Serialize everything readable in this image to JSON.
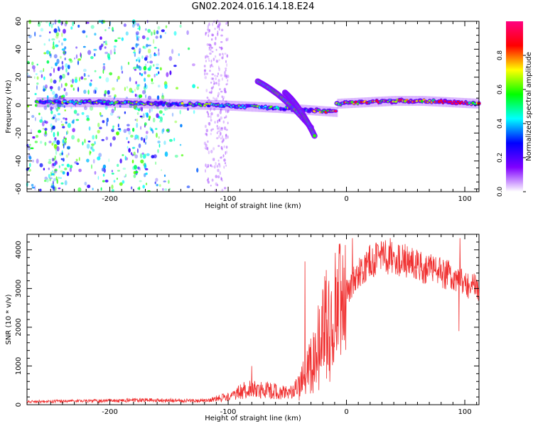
{
  "title": "GN02.2024.016.14.18.E24",
  "chart_data": [
    {
      "type": "heatmap",
      "xlabel": "Height of straight line (km)",
      "ylabel": "Frequency (Hz)",
      "xlim": [
        -270,
        112
      ],
      "ylim": [
        -62,
        60
      ],
      "xticks": [
        -200,
        -100,
        0,
        100
      ],
      "yticks": [
        -60,
        -40,
        -20,
        0,
        20,
        40,
        60
      ],
      "colorbar": {
        "label": "Normalized spectral amplitude",
        "range": [
          0,
          1
        ],
        "ticks": [
          0.0,
          0.2,
          0.4,
          0.6,
          0.8
        ],
        "colors": [
          "#ffffff",
          "#8000ff",
          "#0000ff",
          "#00ffff",
          "#00ff00",
          "#ffff00",
          "#ff0000",
          "#ff0080"
        ]
      },
      "bands": [
        {
          "x": [
            -262,
            -8
          ],
          "f": [
            2,
            2,
            1,
            0,
            -2,
            -5
          ],
          "amplitude": 0.45
        },
        {
          "x": [
            -8,
            112
          ],
          "f": [
            1,
            2,
            3,
            3,
            2,
            1
          ],
          "amplitude": 0.7
        }
      ],
      "arcs": [
        {
          "x": [
            -75,
            -30
          ],
          "f": [
            17,
            -16
          ]
        },
        {
          "x": [
            -52,
            -27
          ],
          "f": [
            9,
            -22
          ]
        }
      ],
      "noise_region_x": [
        -270,
        -120
      ]
    },
    {
      "type": "line",
      "xlabel": "Height of straight line (km)",
      "ylabel": "SNR (10 * v/v)",
      "xlim": [
        -270,
        112
      ],
      "ylim": [
        0,
        4400
      ],
      "xticks": [
        -200,
        -100,
        0,
        100
      ],
      "yticks": [
        0,
        1000,
        2000,
        3000,
        4000
      ],
      "color": "#f03030",
      "envelope": {
        "x": [
          -270,
          -230,
          -200,
          -170,
          -150,
          -120,
          -100,
          -90,
          -80,
          -70,
          -60,
          -50,
          -40,
          -30,
          -20,
          -10,
          0,
          10,
          20,
          30,
          40,
          50,
          60,
          70,
          80,
          90,
          100,
          112
        ],
        "y": [
          80,
          90,
          100,
          120,
          110,
          100,
          200,
          350,
          400,
          380,
          350,
          300,
          500,
          1200,
          2100,
          2600,
          2900,
          3400,
          3700,
          3800,
          3800,
          3700,
          3600,
          3500,
          3400,
          3300,
          3150,
          3000
        ]
      },
      "spikes": [
        {
          "x": -80,
          "y": 1000
        },
        {
          "x": -35,
          "y": 3700
        },
        {
          "x": -15,
          "y": 3200
        },
        {
          "x": 5,
          "y": 4300
        },
        {
          "x": 37,
          "y": 4300
        },
        {
          "x": 95,
          "y": 1900
        },
        {
          "x": 96,
          "y": 4300
        }
      ]
    }
  ]
}
